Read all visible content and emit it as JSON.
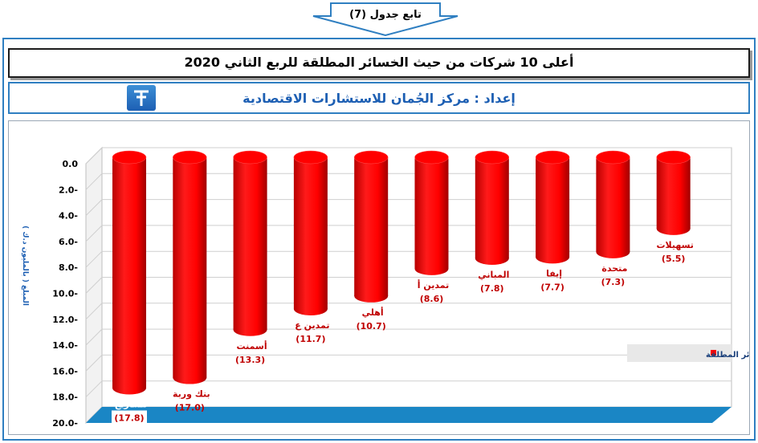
{
  "header": {
    "table_label": "تابع جدول (7)"
  },
  "title": "أعلى 10 شركات من حيث الخسائر المطلقة للربع الثاني 2020",
  "subtitle": "إعداد : مركز الجُمان للاستشارات الاقتصادية",
  "colors": {
    "bar": "#ff0000",
    "bar_dark": "#c00000",
    "floor": "#1a86c5",
    "frame": "#2f7fc1"
  },
  "chart_data": {
    "type": "bar",
    "categories": [
      "مشاريع",
      "بنك وربة",
      "أسمنت",
      "تمدين ع",
      "أهلي",
      "تمدين أ",
      "المباني",
      "إيفا",
      "متحدة",
      "تسهيلات"
    ],
    "series": [
      {
        "name": "الخسائر المطلقة",
        "values": [
          -17.8,
          -17.0,
          -13.3,
          -11.7,
          -10.7,
          -8.6,
          -7.8,
          -7.7,
          -7.3,
          -5.5
        ]
      }
    ],
    "value_labels": [
      "(17.8)",
      "(17.0)",
      "(13.3)",
      "(11.7)",
      "(10.7)",
      "(8.6)",
      "(7.8)",
      "(7.7)",
      "(7.3)",
      "(5.5)"
    ],
    "y_ticks": [
      "0.0",
      "2.0-",
      "4.0-",
      "6.0-",
      "8.0-",
      "10.0-",
      "12.0-",
      "14.0-",
      "16.0-",
      "18.0-",
      "20.0-"
    ],
    "ylim": [
      -20,
      0
    ],
    "ylabel": "المبلغ ( بالمليون د.ك )",
    "legend_position": "right",
    "grid": true
  }
}
